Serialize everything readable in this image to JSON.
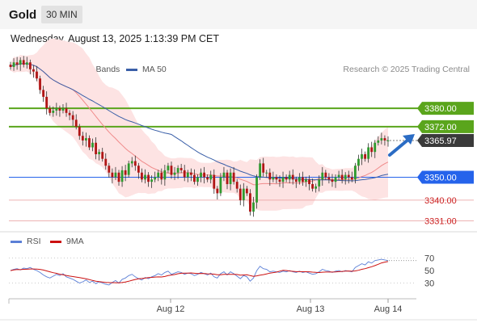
{
  "header": {
    "title": "Gold",
    "timeframe": "30 MIN"
  },
  "datetime": "Wednesday, August 13, 2025 1:13:39 PM CET",
  "legend": {
    "ma20": "MA 20 + Bollinger Bands",
    "ma50": "MA 50",
    "credit": "Research © 2025 Trading Central"
  },
  "rsi_legend": {
    "rsi": "RSI",
    "ma9": "9MA"
  },
  "colors": {
    "ma20": "#f08a8a",
    "ma50": "#3a5fa8",
    "bollinger": "#fde3e3",
    "target": "#5aa51c",
    "pivot": "#2563eb",
    "support": "#cc2222",
    "current": "#3a3a3a",
    "rsi": "#5b7fd6",
    "rsi_ma": "#cc1111"
  },
  "chart_data": [
    {
      "type": "candlestick",
      "title": "Gold 30 MIN",
      "x_labels": [
        "Aug 12",
        "Aug 13",
        "Aug 14"
      ],
      "ylim": [
        3328,
        3392
      ],
      "price_levels": [
        {
          "label": "3380.00",
          "value": 3380.0,
          "kind": "target"
        },
        {
          "label": "3372.00",
          "value": 3372.0,
          "kind": "target"
        },
        {
          "label": "3365.97",
          "value": 3365.97,
          "kind": "current"
        },
        {
          "label": "3350.00",
          "value": 3350.0,
          "kind": "pivot"
        },
        {
          "label": "3340.00",
          "value": 3340.0,
          "kind": "support"
        },
        {
          "label": "3331.00",
          "value": 3331.0,
          "kind": "support"
        }
      ],
      "series": [
        {
          "name": "MA 20 + Bollinger Bands"
        },
        {
          "name": "MA 50"
        }
      ],
      "candles_close": [
        3398,
        3400,
        3399,
        3401,
        3399,
        3400,
        3397,
        3396,
        3393,
        3388,
        3385,
        3380,
        3378,
        3379,
        3380,
        3379,
        3380,
        3378,
        3377,
        3375,
        3372,
        3368,
        3366,
        3367,
        3363,
        3365,
        3360,
        3361,
        3358,
        3355,
        3352,
        3350,
        3352,
        3348,
        3353,
        3351,
        3356,
        3357,
        3355,
        3352,
        3349,
        3351,
        3348,
        3349,
        3350,
        3352,
        3349,
        3353,
        3355,
        3351,
        3352,
        3354,
        3353,
        3350,
        3352,
        3351,
        3348,
        3350,
        3352,
        3350,
        3349,
        3351,
        3345,
        3343,
        3350,
        3352,
        3347,
        3352,
        3348,
        3345,
        3340,
        3345,
        3343,
        3335,
        3339,
        3350,
        3356,
        3352,
        3352,
        3349,
        3350,
        3349,
        3348,
        3350,
        3349,
        3351,
        3349,
        3348,
        3350,
        3348,
        3349,
        3347,
        3345,
        3346,
        3349,
        3352,
        3350,
        3349,
        3348,
        3350,
        3351,
        3349,
        3351,
        3350,
        3349,
        3355,
        3358,
        3360,
        3358,
        3363,
        3361,
        3365,
        3366,
        3367,
        3366,
        3366
      ]
    },
    {
      "type": "line",
      "title": "RSI",
      "yticks": [
        70,
        50,
        30
      ],
      "ylim": [
        10,
        85
      ],
      "series": [
        {
          "name": "RSI"
        },
        {
          "name": "9MA"
        }
      ],
      "rsi_values": [
        50,
        52,
        53,
        51,
        54,
        53,
        55,
        52,
        50,
        47,
        43,
        40,
        38,
        41,
        44,
        42,
        45,
        40,
        38,
        36,
        33,
        30,
        32,
        35,
        31,
        33,
        29,
        32,
        30,
        28,
        27,
        31,
        34,
        30,
        36,
        38,
        42,
        44,
        40,
        37,
        35,
        39,
        37,
        40,
        42,
        45,
        43,
        47,
        49,
        44,
        46,
        48,
        47,
        44,
        46,
        45,
        42,
        44,
        47,
        45,
        43,
        46,
        40,
        38,
        45,
        48,
        43,
        48,
        45,
        41,
        37,
        42,
        40,
        33,
        38,
        50,
        57,
        53,
        52,
        48,
        49,
        48,
        47,
        49,
        48,
        50,
        48,
        47,
        49,
        47,
        48,
        46,
        44,
        45,
        48,
        52,
        50,
        49,
        47,
        49,
        50,
        48,
        50,
        49,
        48,
        55,
        58,
        61,
        59,
        64,
        62,
        66,
        67,
        68,
        67,
        66
      ]
    }
  ]
}
